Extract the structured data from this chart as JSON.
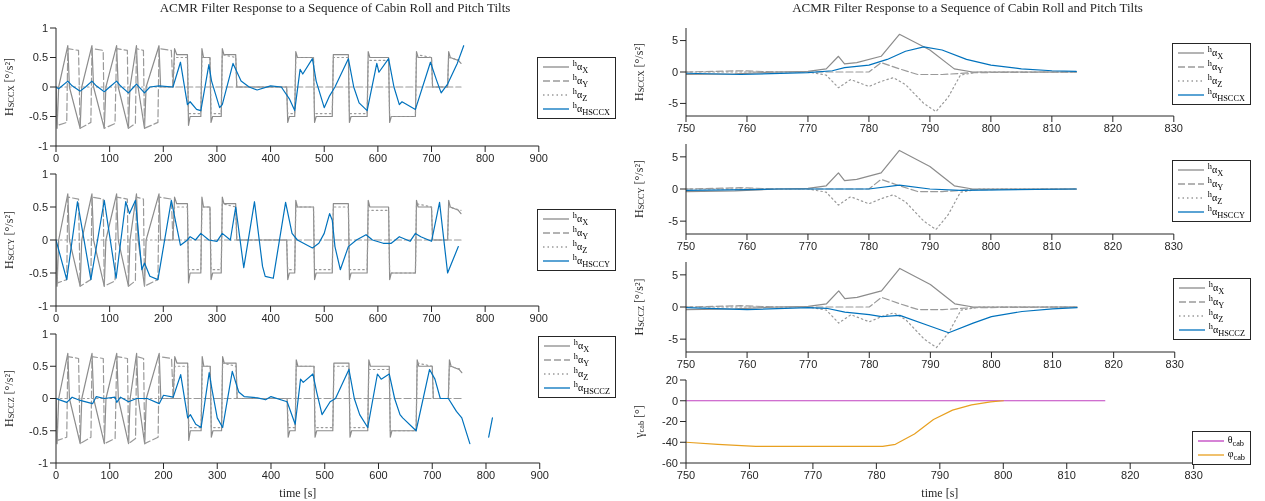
{
  "chart_data": [
    {
      "type": "line",
      "title": "ACMR Filter Response to a Sequence of Cabin Roll and Pitch Tilts",
      "ylabel": "H$_{SCCX}$ [°/s²]",
      "xlim": [
        0,
        900
      ],
      "xticks": [
        0,
        100,
        200,
        300,
        400,
        500,
        600,
        700,
        800,
        900
      ],
      "ylim": [
        -1,
        1
      ],
      "yticks": [
        -1,
        -0.5,
        0,
        0.5,
        1
      ],
      "legend": "right",
      "series": [
        {
          "name": "$^{h}$α$_{X}$",
          "color": "#8c8c8c",
          "line_style": "solid",
          "x": [
            0,
            2,
            5,
            22,
            25,
            45,
            48,
            67,
            70,
            90,
            93,
            113,
            116,
            135,
            138,
            150,
            153,
            165,
            168,
            192,
            195,
            218,
            221,
            225,
            245,
            247,
            250,
            270,
            272,
            275,
            287,
            289,
            292,
            308,
            310,
            313,
            335,
            337,
            430,
            432,
            435,
            445,
            447,
            450,
            480,
            482,
            485,
            515,
            517,
            545,
            547,
            550,
            580,
            582,
            585,
            620,
            622,
            625,
            670,
            672,
            675,
            700,
            702,
            730,
            732,
            735,
            750,
            755
          ],
          "values": [
            0,
            -0.7,
            0,
            0.7,
            0,
            -0.7,
            0,
            0.7,
            0,
            -0.7,
            0,
            0.7,
            0,
            -0.7,
            0,
            0.7,
            0,
            -0.7,
            0,
            0.7,
            0,
            0,
            0.65,
            0.55,
            0.55,
            -0.65,
            -0.5,
            -0.5,
            0.65,
            0.5,
            0.5,
            -0.6,
            -0.5,
            -0.5,
            0.65,
            0.55,
            0.55,
            0,
            0,
            -0.6,
            -0.5,
            -0.5,
            0.6,
            0.5,
            0.5,
            -0.6,
            -0.5,
            -0.5,
            0.55,
            0.55,
            -0.6,
            -0.5,
            -0.5,
            0.6,
            0.5,
            0.5,
            -0.6,
            -0.5,
            -0.5,
            0.6,
            0.5,
            0.5,
            0,
            0,
            0.6,
            0.5,
            0.45,
            0.4
          ]
        },
        {
          "name": "$^{h}$α$_{Y}$",
          "color": "#9a9a9a",
          "line_style": "dashed",
          "x": [
            0,
            3,
            20,
            22,
            42,
            45,
            65,
            67,
            88,
            90,
            110,
            113,
            133,
            135,
            148,
            150,
            163,
            165,
            190,
            192,
            215,
            218,
            755
          ],
          "values": [
            0,
            -0.65,
            -0.6,
            0.65,
            0.62,
            -0.7,
            -0.6,
            0.65,
            0.62,
            -0.7,
            -0.62,
            0.65,
            0.62,
            -0.7,
            -0.62,
            0.65,
            0.62,
            -0.7,
            -0.6,
            0.65,
            0.62,
            0,
            0
          ]
        },
        {
          "name": "$^{h}$α$_{Z}$",
          "color": "#9a9a9a",
          "line_style": "dotted",
          "x": [
            0,
            218,
            221,
            245,
            247,
            270,
            272,
            287,
            289,
            308,
            310,
            335,
            337,
            430,
            432,
            445,
            447,
            480,
            482,
            515,
            517,
            545,
            547,
            580,
            582,
            620,
            622,
            670,
            672,
            700,
            702,
            730,
            732,
            755
          ],
          "values": [
            0,
            0,
            0.5,
            0.5,
            -0.45,
            -0.45,
            0.5,
            0.5,
            -0.45,
            -0.45,
            0.55,
            0.5,
            0,
            0,
            -0.45,
            -0.45,
            0.5,
            0.5,
            -0.45,
            -0.45,
            0.5,
            0.5,
            -0.45,
            -0.45,
            0.45,
            0.45,
            -0.5,
            -0.5,
            0.55,
            0.5,
            0,
            0,
            0.5,
            0.45
          ]
        },
        {
          "name": "$^{h}$α$_{HSCCX}$",
          "color": "#0072bd",
          "line_style": "solid",
          "x": [
            0,
            5,
            22,
            30,
            45,
            55,
            67,
            75,
            90,
            100,
            113,
            120,
            135,
            145,
            150,
            165,
            175,
            192,
            218,
            232,
            245,
            250,
            262,
            270,
            285,
            290,
            305,
            310,
            330,
            345,
            360,
            375,
            400,
            420,
            435,
            445,
            455,
            460,
            478,
            485,
            500,
            510,
            520,
            545,
            555,
            565,
            580,
            598,
            602,
            620,
            630,
            640,
            645,
            670,
            698,
            710,
            718,
            730,
            748,
            760
          ],
          "values": [
            0,
            -0.03,
            0.1,
            0.02,
            -0.07,
            0,
            0.1,
            0.02,
            -0.08,
            0,
            0.1,
            0.02,
            -0.1,
            0,
            0.05,
            -0.1,
            0,
            0.02,
            0,
            0.42,
            -0.3,
            -0.25,
            -0.38,
            -0.4,
            0.38,
            0.1,
            -0.35,
            -0.3,
            0.4,
            0.1,
            0,
            -0.05,
            0.02,
            0,
            -0.2,
            -0.4,
            0.3,
            0.22,
            0.48,
            0.1,
            -0.35,
            -0.15,
            0,
            0.48,
            0,
            -0.27,
            -0.4,
            0.4,
            0.25,
            0.48,
            0,
            -0.3,
            -0.25,
            -0.38,
            0.42,
            0.1,
            -0.1,
            0.05,
            0.4,
            0.7
          ]
        }
      ]
    },
    {
      "type": "line",
      "ylabel": "H$_{SCCY}$ [°/s²]",
      "xlim": [
        0,
        900
      ],
      "xticks": [
        0,
        100,
        200,
        300,
        400,
        500,
        600,
        700,
        800,
        900
      ],
      "ylim": [
        -1,
        1
      ],
      "yticks": [
        -1,
        -0.5,
        0,
        0.5,
        1
      ],
      "legend": "right",
      "series": [
        {
          "name": "$^{h}$α$_{X}$",
          "color": "#8c8c8c",
          "line_style": "solid",
          "x": [
            0,
            2,
            5,
            22,
            25,
            45,
            48,
            67,
            70,
            90,
            93,
            113,
            116,
            135,
            138,
            150,
            153,
            165,
            168,
            192,
            195,
            218,
            221,
            225,
            245,
            247,
            250,
            270,
            272,
            275,
            287,
            289,
            292,
            308,
            310,
            313,
            335,
            337,
            430,
            432,
            435,
            445,
            447,
            450,
            480,
            482,
            485,
            515,
            517,
            545,
            547,
            550,
            580,
            582,
            585,
            620,
            622,
            625,
            670,
            672,
            675,
            700,
            702,
            730,
            732,
            735,
            750,
            755
          ],
          "values": [
            0,
            -0.7,
            0,
            0.7,
            0,
            -0.7,
            0,
            0.7,
            0,
            -0.7,
            0,
            0.7,
            0,
            -0.7,
            0,
            0.7,
            0,
            -0.7,
            0,
            0.7,
            0,
            0,
            0.65,
            0.55,
            0.55,
            -0.65,
            -0.5,
            -0.5,
            0.65,
            0.5,
            0.5,
            -0.6,
            -0.5,
            -0.5,
            0.65,
            0.55,
            0.55,
            0,
            0,
            -0.6,
            -0.5,
            -0.5,
            0.6,
            0.5,
            0.5,
            -0.6,
            -0.5,
            -0.5,
            0.55,
            0.55,
            -0.6,
            -0.5,
            -0.5,
            0.6,
            0.5,
            0.5,
            -0.6,
            -0.5,
            -0.5,
            0.6,
            0.5,
            0.5,
            0,
            0,
            0.6,
            0.5,
            0.45,
            0.4
          ]
        },
        {
          "name": "$^{h}$α$_{Y}$",
          "color": "#9a9a9a",
          "line_style": "dashed",
          "x": [
            0,
            3,
            20,
            22,
            42,
            45,
            65,
            67,
            88,
            90,
            110,
            113,
            133,
            135,
            148,
            150,
            163,
            165,
            190,
            192,
            215,
            218,
            755
          ],
          "values": [
            0,
            -0.65,
            -0.6,
            0.65,
            0.62,
            -0.7,
            -0.6,
            0.65,
            0.62,
            -0.7,
            -0.62,
            0.65,
            0.62,
            -0.7,
            -0.62,
            0.65,
            0.62,
            -0.7,
            -0.6,
            0.65,
            0.62,
            0,
            0
          ]
        },
        {
          "name": "$^{h}$α$_{Z}$",
          "color": "#9a9a9a",
          "line_style": "dotted",
          "x": [
            0,
            218,
            221,
            245,
            247,
            270,
            272,
            287,
            289,
            308,
            310,
            335,
            337,
            430,
            432,
            445,
            447,
            480,
            482,
            515,
            517,
            545,
            547,
            580,
            582,
            620,
            622,
            670,
            672,
            700,
            702,
            730,
            732,
            755
          ],
          "values": [
            0,
            0,
            0.5,
            0.5,
            -0.45,
            -0.45,
            0.5,
            0.5,
            -0.45,
            -0.45,
            0.55,
            0.5,
            0,
            0,
            -0.45,
            -0.45,
            0.5,
            0.5,
            -0.45,
            -0.45,
            0.5,
            0.5,
            -0.45,
            -0.45,
            0.45,
            0.45,
            -0.5,
            -0.5,
            0.55,
            0.5,
            0,
            0,
            0.5,
            0.45
          ]
        },
        {
          "name": "$^{h}$α$_{HSCCY}$",
          "color": "#0072bd",
          "line_style": "solid",
          "x": [
            0,
            20,
            40,
            65,
            90,
            112,
            130,
            137,
            148,
            160,
            165,
            175,
            190,
            215,
            225,
            232,
            245,
            250,
            260,
            270,
            285,
            300,
            310,
            325,
            335,
            350,
            370,
            385,
            390,
            405,
            428,
            440,
            450,
            478,
            490,
            500,
            510,
            515,
            520,
            530,
            545,
            560,
            578,
            590,
            610,
            625,
            640,
            660,
            670,
            680,
            700,
            715,
            730,
            740,
            750
          ],
          "values": [
            0,
            -0.6,
            0.58,
            -0.6,
            0.6,
            -0.58,
            0.58,
            0.4,
            0.6,
            -0.45,
            -0.35,
            -0.55,
            -0.6,
            0.6,
            0.2,
            -0.08,
            0,
            0.05,
            0,
            0.1,
            0,
            -0.02,
            0.1,
            0,
            0.5,
            -0.42,
            0.58,
            -0.4,
            -0.55,
            -0.58,
            0.57,
            0.1,
            0,
            -0.12,
            -0.05,
            0.1,
            0.4,
            0.3,
            -0.1,
            -0.45,
            -0.1,
            0,
            0.08,
            0,
            -0.05,
            -0.05,
            0.05,
            -0.02,
            0.1,
            0.05,
            -0.02,
            0.57,
            -0.5,
            -0.3,
            -0.1
          ]
        }
      ]
    },
    {
      "type": "line",
      "ylabel": "H$_{SCCZ}$ [°/s²]",
      "xlabel": "time [s]",
      "xlim": [
        0,
        900
      ],
      "xticks": [
        0,
        100,
        200,
        300,
        400,
        500,
        600,
        700,
        800,
        900
      ],
      "ylim": [
        -1,
        1
      ],
      "yticks": [
        -1,
        -0.5,
        0,
        0.5,
        1
      ],
      "legend": "top right",
      "series": [
        {
          "name": "$^{h}$α$_{X}$",
          "color": "#8c8c8c",
          "line_style": "solid",
          "x": [
            0,
            2,
            5,
            22,
            25,
            45,
            48,
            67,
            70,
            90,
            93,
            113,
            116,
            135,
            138,
            150,
            153,
            165,
            168,
            192,
            195,
            218,
            221,
            225,
            245,
            247,
            250,
            270,
            272,
            275,
            287,
            289,
            292,
            308,
            310,
            313,
            335,
            337,
            430,
            432,
            435,
            445,
            447,
            450,
            480,
            482,
            485,
            515,
            517,
            545,
            547,
            550,
            580,
            582,
            585,
            620,
            622,
            625,
            670,
            672,
            675,
            700,
            702,
            730,
            732,
            735,
            750,
            755
          ],
          "values": [
            0,
            -0.7,
            0,
            0.7,
            0,
            -0.7,
            0,
            0.7,
            0,
            -0.7,
            0,
            0.7,
            0,
            -0.7,
            0,
            0.7,
            0,
            -0.7,
            0,
            0.7,
            0,
            0,
            0.65,
            0.55,
            0.55,
            -0.65,
            -0.5,
            -0.5,
            0.65,
            0.5,
            0.5,
            -0.6,
            -0.5,
            -0.5,
            0.65,
            0.55,
            0.55,
            0,
            0,
            -0.6,
            -0.5,
            -0.5,
            0.6,
            0.5,
            0.5,
            -0.6,
            -0.5,
            -0.5,
            0.55,
            0.55,
            -0.6,
            -0.5,
            -0.5,
            0.6,
            0.5,
            0.5,
            -0.6,
            -0.5,
            -0.5,
            0.6,
            0.5,
            0.5,
            0,
            0,
            0.6,
            0.5,
            0.45,
            0.4
          ]
        },
        {
          "name": "$^{h}$α$_{Y}$",
          "color": "#9a9a9a",
          "line_style": "dashed",
          "x": [
            0,
            3,
            20,
            22,
            42,
            45,
            65,
            67,
            88,
            90,
            110,
            113,
            133,
            135,
            148,
            150,
            163,
            165,
            190,
            192,
            215,
            218,
            755
          ],
          "values": [
            0,
            -0.65,
            -0.6,
            0.65,
            0.62,
            -0.7,
            -0.6,
            0.65,
            0.62,
            -0.7,
            -0.62,
            0.65,
            0.62,
            -0.7,
            -0.62,
            0.65,
            0.62,
            -0.7,
            -0.6,
            0.65,
            0.62,
            0,
            0
          ]
        },
        {
          "name": "$^{h}$α$_{Z}$",
          "color": "#9a9a9a",
          "line_style": "dotted",
          "x": [
            0,
            218,
            221,
            245,
            247,
            270,
            272,
            287,
            289,
            308,
            310,
            335,
            337,
            430,
            432,
            445,
            447,
            480,
            482,
            515,
            517,
            545,
            547,
            580,
            582,
            620,
            622,
            670,
            672,
            700,
            702,
            730,
            732,
            755
          ],
          "values": [
            0,
            0,
            0.5,
            0.5,
            -0.45,
            -0.45,
            0.5,
            0.5,
            -0.45,
            -0.45,
            0.55,
            0.5,
            0,
            0,
            -0.45,
            -0.45,
            0.5,
            0.5,
            -0.45,
            -0.45,
            0.5,
            0.5,
            -0.45,
            -0.45,
            0.45,
            0.45,
            -0.5,
            -0.5,
            0.55,
            0.5,
            0,
            0,
            0.5,
            0.45
          ]
        },
        {
          "name": "$^{h}$α$_{HSCCZ}$",
          "color": "#0072bd",
          "line_style": "solid",
          "x": [
            0,
            20,
            30,
            45,
            68,
            75,
            90,
            110,
            113,
            120,
            135,
            150,
            170,
            192,
            200,
            218,
            232,
            245,
            250,
            260,
            270,
            285,
            290,
            300,
            310,
            328,
            340,
            350,
            375,
            390,
            400,
            430,
            445,
            455,
            460,
            478,
            485,
            495,
            510,
            520,
            545,
            555,
            565,
            580,
            598,
            605,
            620,
            630,
            640,
            645,
            670,
            695,
            705,
            715,
            730,
            745,
            755,
            770,
            775,
            800,
            805,
            812
          ],
          "values": [
            0,
            -0.06,
            0.02,
            -0.03,
            -0.08,
            0.03,
            0,
            0.02,
            -0.06,
            0.02,
            -0.05,
            0,
            0,
            -0.08,
            0.05,
            0.02,
            0.37,
            -0.3,
            -0.25,
            -0.4,
            -0.45,
            0.4,
            0.15,
            -0.3,
            -0.45,
            0.42,
            0.1,
            0.03,
            0.01,
            -0.02,
            0.03,
            -0.05,
            -0.4,
            0.3,
            0.25,
            0.38,
            0.1,
            -0.25,
            -0.05,
            0,
            0.45,
            0,
            -0.25,
            -0.45,
            0.38,
            0.3,
            0.38,
            0,
            -0.25,
            -0.3,
            -0.5,
            0.45,
            0.3,
            0,
            0,
            -0.2,
            -0.3,
            -0.7,
            null,
            null,
            -0.6,
            -0.3
          ]
        }
      ]
    },
    {
      "type": "line",
      "title": "ACMR Filter Response to a Sequence of Cabin Roll and Pitch Tilts",
      "ylabel": "H$_{SCCX}$ [°/s²]",
      "xlim": [
        750,
        830
      ],
      "xticks": [
        750,
        760,
        770,
        780,
        790,
        800,
        810,
        820,
        830
      ],
      "ylim": [
        -7,
        7
      ],
      "yticks": [
        -5,
        0,
        5
      ],
      "legend": "right",
      "series": [
        {
          "name": "$^{h}$α$_{X}$",
          "color": "#8c8c8c",
          "line_style": "solid",
          "x": [
            750,
            758,
            765,
            770,
            773,
            775,
            776,
            778,
            782,
            785,
            790,
            794,
            797,
            814
          ],
          "values": [
            -0.4,
            -0.3,
            0,
            0.1,
            0.5,
            2.5,
            1.3,
            1.5,
            2.5,
            6,
            3.5,
            0.5,
            0,
            0
          ]
        },
        {
          "name": "$^{h}$α$_{Y}$",
          "color": "#9a9a9a",
          "line_style": "dashed",
          "x": [
            750,
            759,
            765,
            780,
            782,
            785,
            788,
            792,
            797,
            814
          ],
          "values": [
            0,
            0.2,
            0,
            0,
            1.5,
            0.5,
            -0.4,
            -0.4,
            -0.1,
            0
          ]
        },
        {
          "name": "$^{h}$α$_{Z}$",
          "color": "#9a9a9a",
          "line_style": "dotted",
          "x": [
            750,
            770,
            773,
            775,
            777,
            780,
            782,
            784,
            786,
            789,
            791,
            793,
            795,
            798,
            814
          ],
          "values": [
            0,
            0,
            -0.5,
            -2.5,
            -1.2,
            -2.3,
            -1.5,
            -0.9,
            -2,
            -5,
            -6.3,
            -4,
            -0.5,
            0,
            0
          ]
        },
        {
          "name": "$^{h}$α$_{HSCCX}$",
          "color": "#0072bd",
          "line_style": "solid",
          "x": [
            750,
            759,
            770,
            774,
            776,
            780,
            783,
            786,
            789,
            792,
            796,
            800,
            805,
            810,
            814
          ],
          "values": [
            -0.2,
            -0.4,
            -0.1,
            0.2,
            0.7,
            1.1,
            2,
            3.3,
            4,
            3.5,
            2,
            1.1,
            0.5,
            0.2,
            0.1
          ]
        }
      ]
    },
    {
      "type": "line",
      "ylabel": "H$_{SCCY}$ [°/s²]",
      "xlim": [
        750,
        830
      ],
      "xticks": [
        750,
        760,
        770,
        780,
        790,
        800,
        810,
        820,
        830
      ],
      "ylim": [
        -7,
        7
      ],
      "yticks": [
        -5,
        0,
        5
      ],
      "legend": "right",
      "series": [
        {
          "name": "$^{h}$α$_{X}$",
          "color": "#8c8c8c",
          "line_style": "solid",
          "x": [
            750,
            758,
            765,
            770,
            773,
            775,
            776,
            778,
            782,
            785,
            790,
            794,
            797,
            814
          ],
          "values": [
            -0.4,
            -0.3,
            0,
            0.1,
            0.5,
            2.5,
            1.3,
            1.5,
            2.5,
            6,
            3.5,
            0.5,
            0,
            0
          ]
        },
        {
          "name": "$^{h}$α$_{Y}$",
          "color": "#9a9a9a",
          "line_style": "dashed",
          "x": [
            750,
            759,
            765,
            780,
            782,
            785,
            788,
            792,
            797,
            814
          ],
          "values": [
            0,
            0.2,
            0,
            0,
            1.5,
            0.5,
            -0.4,
            -0.4,
            -0.1,
            0
          ]
        },
        {
          "name": "$^{h}$α$_{Z}$",
          "color": "#9a9a9a",
          "line_style": "dotted",
          "x": [
            750,
            770,
            773,
            775,
            777,
            780,
            782,
            784,
            786,
            789,
            791,
            793,
            795,
            798,
            814
          ],
          "values": [
            0,
            0,
            -0.5,
            -2.5,
            -1.2,
            -2.3,
            -1.5,
            -0.9,
            -2,
            -5,
            -6.3,
            -4,
            -0.5,
            0,
            0
          ]
        },
        {
          "name": "$^{h}$α$_{HSCCY}$",
          "color": "#0072bd",
          "line_style": "solid",
          "x": [
            750,
            760,
            765,
            780,
            785,
            790,
            795,
            814
          ],
          "values": [
            -0.2,
            -0.1,
            0,
            0,
            0.6,
            0,
            -0.2,
            0
          ]
        }
      ]
    },
    {
      "type": "line",
      "ylabel": "H$_{SCCZ}$ [°/s²]",
      "xlim": [
        750,
        830
      ],
      "xticks": [
        750,
        760,
        770,
        780,
        790,
        800,
        810,
        820,
        830
      ],
      "ylim": [
        -7,
        7
      ],
      "yticks": [
        -5,
        0,
        5
      ],
      "legend": "right",
      "series": [
        {
          "name": "$^{h}$α$_{X}$",
          "color": "#8c8c8c",
          "line_style": "solid",
          "x": [
            750,
            758,
            765,
            770,
            773,
            775,
            776,
            778,
            782,
            785,
            790,
            794,
            797,
            814
          ],
          "values": [
            -0.4,
            -0.3,
            0,
            0.1,
            0.5,
            2.5,
            1.3,
            1.5,
            2.5,
            6,
            3.5,
            0.5,
            0,
            0
          ]
        },
        {
          "name": "$^{h}$α$_{Y}$",
          "color": "#9a9a9a",
          "line_style": "dashed",
          "x": [
            750,
            759,
            765,
            780,
            782,
            785,
            788,
            792,
            797,
            814
          ],
          "values": [
            0,
            0.2,
            0,
            0,
            1.5,
            0.5,
            -0.4,
            -0.4,
            -0.1,
            0
          ]
        },
        {
          "name": "$^{h}$α$_{Z}$",
          "color": "#9a9a9a",
          "line_style": "dotted",
          "x": [
            750,
            770,
            773,
            775,
            777,
            780,
            782,
            784,
            786,
            789,
            791,
            793,
            795,
            798,
            814
          ],
          "values": [
            0,
            0,
            -0.5,
            -2.5,
            -1.2,
            -2.3,
            -1.5,
            -0.9,
            -2,
            -5,
            -6.3,
            -4,
            -0.5,
            0,
            0
          ]
        },
        {
          "name": "$^{h}$α$_{HSCCZ}$",
          "color": "#0072bd",
          "line_style": "solid",
          "x": [
            750,
            760,
            770,
            773,
            776,
            780,
            782,
            785,
            790,
            793,
            797,
            800,
            805,
            810,
            814
          ],
          "values": [
            -0.1,
            -0.4,
            -0.1,
            -0.2,
            -0.8,
            -1.2,
            -1.5,
            -1.3,
            -3,
            -4,
            -2.5,
            -1.5,
            -0.7,
            -0.3,
            -0.1
          ]
        }
      ]
    },
    {
      "type": "line",
      "ylabel": "γ$_{cab}$ [°]",
      "xlabel": "time [s]",
      "xlim": [
        750,
        830
      ],
      "xticks": [
        750,
        760,
        770,
        780,
        790,
        800,
        810,
        820,
        830
      ],
      "ylim": [
        -60,
        20
      ],
      "yticks": [
        -60,
        -40,
        -20,
        0,
        20
      ],
      "legend": "bottom right",
      "series": [
        {
          "name": "θ$_{cab}$",
          "color": "#c040c0",
          "line_style": "solid",
          "x": [
            750,
            816
          ],
          "values": [
            0,
            0
          ]
        },
        {
          "name": "φ$_{cab}$",
          "color": "#e8a020",
          "line_style": "solid",
          "x": [
            750,
            755,
            761,
            770,
            781,
            783,
            786,
            789,
            792,
            795,
            798,
            800
          ],
          "values": [
            -40,
            -42,
            -44,
            -44,
            -44,
            -42,
            -32,
            -18,
            -9,
            -4,
            -1,
            0
          ]
        }
      ]
    }
  ]
}
